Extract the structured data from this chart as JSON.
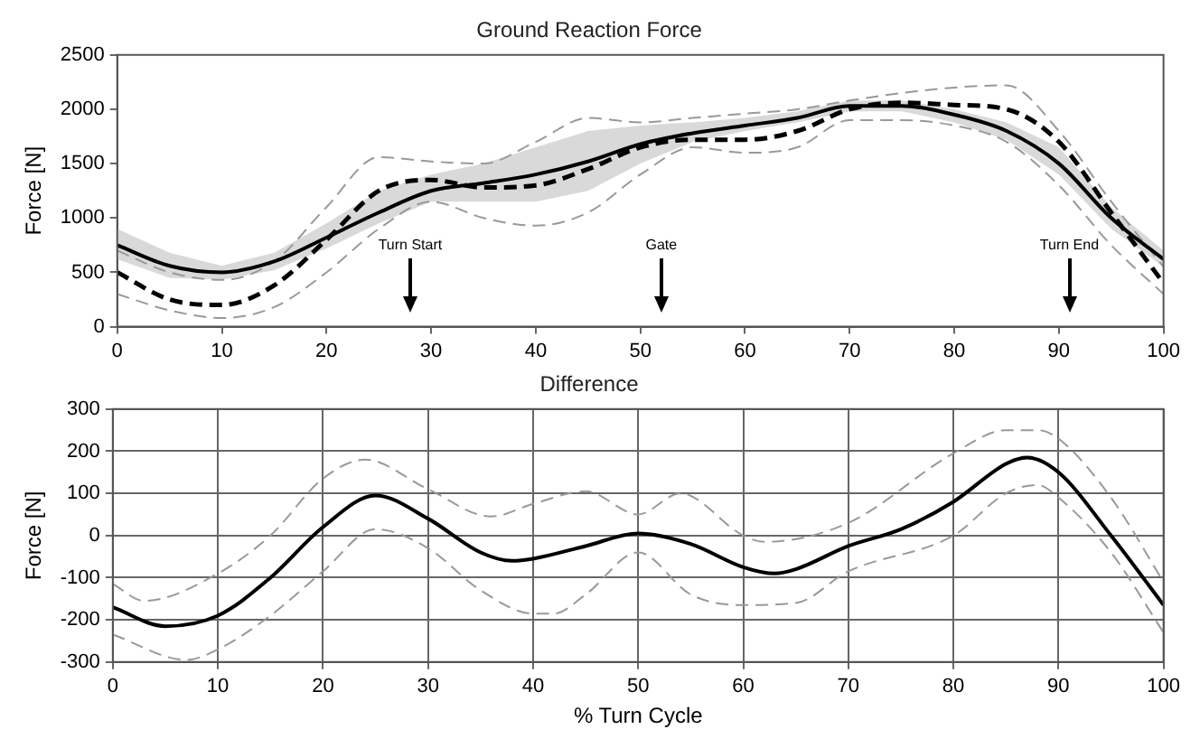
{
  "chart_data": [
    {
      "type": "line",
      "title": "Ground Reaction Force",
      "ylabel": "Force [N]",
      "xlim": [
        0,
        100
      ],
      "xticks": [
        0,
        10,
        20,
        30,
        40,
        50,
        60,
        70,
        80,
        90,
        100
      ],
      "ylim": [
        0,
        2500
      ],
      "yticks": [
        0,
        500,
        1000,
        1500,
        2000,
        2500
      ],
      "grid": false,
      "legend": false,
      "marker": "none",
      "x": [
        0,
        5,
        10,
        15,
        20,
        25,
        30,
        35,
        40,
        45,
        50,
        55,
        60,
        65,
        70,
        75,
        80,
        85,
        90,
        95,
        100
      ],
      "series": [
        {
          "color": "#000000",
          "line_style": "solid",
          "values": [
            750,
            560,
            500,
            600,
            820,
            1050,
            1250,
            1320,
            1400,
            1520,
            1680,
            1780,
            1850,
            1920,
            2030,
            2030,
            1950,
            1800,
            1500,
            1000,
            620
          ],
          "lower": [
            620,
            450,
            430,
            520,
            720,
            950,
            1150,
            1150,
            1150,
            1250,
            1500,
            1700,
            1800,
            1880,
            1980,
            1980,
            1880,
            1720,
            1400,
            900,
            550
          ],
          "upper": [
            900,
            680,
            560,
            680,
            950,
            1250,
            1400,
            1500,
            1650,
            1800,
            1850,
            1880,
            1920,
            1980,
            2080,
            2080,
            2000,
            1880,
            1650,
            1100,
            700
          ]
        },
        {
          "color": "#000000",
          "line_style": "dashed",
          "values": [
            500,
            250,
            200,
            380,
            800,
            1250,
            1350,
            1280,
            1300,
            1450,
            1650,
            1720,
            1720,
            1800,
            2000,
            2060,
            2040,
            2000,
            1700,
            1050,
            400
          ]
        },
        {
          "color": "#999999",
          "line_style": "dashed",
          "values": [
            700,
            500,
            430,
            600,
            1100,
            1560,
            1520,
            1500,
            1700,
            1920,
            1880,
            1920,
            1960,
            2000,
            2080,
            2150,
            2200,
            2220,
            1800,
            1150,
            550
          ]
        },
        {
          "color": "#999999",
          "line_style": "dashed",
          "values": [
            300,
            150,
            80,
            180,
            500,
            900,
            1150,
            1000,
            930,
            1050,
            1400,
            1650,
            1600,
            1650,
            1900,
            1900,
            1850,
            1700,
            1300,
            750,
            300
          ]
        }
      ],
      "ref_lines": [
        {
          "axis": "x",
          "value": 28,
          "label": "Turn Start",
          "color": "#000000"
        },
        {
          "axis": "x",
          "value": 52,
          "label": "Gate",
          "color": "#000000"
        },
        {
          "axis": "x",
          "value": 91,
          "label": "Turn End",
          "color": "#000000"
        }
      ]
    },
    {
      "type": "line",
      "title": "Difference",
      "xlabel": "% Turn Cycle",
      "ylabel": "Force [N]",
      "xlim": [
        0,
        100
      ],
      "xticks": [
        0,
        10,
        20,
        30,
        40,
        50,
        60,
        70,
        80,
        90,
        100
      ],
      "ylim": [
        -300,
        300
      ],
      "yticks": [
        -300,
        -200,
        -100,
        0,
        100,
        200,
        300
      ],
      "grid": true,
      "legend": false,
      "marker": "none",
      "series": [
        {
          "color": "#000000",
          "line_style": "solid",
          "x": [
            0,
            5,
            10,
            15,
            20,
            25,
            30,
            35,
            38,
            40,
            45,
            50,
            55,
            60,
            63,
            65,
            70,
            75,
            80,
            85,
            87,
            90,
            95,
            100
          ],
          "values": [
            -170,
            -215,
            -190,
            -100,
            20,
            95,
            40,
            -40,
            -60,
            -55,
            -25,
            5,
            -20,
            -75,
            -90,
            -80,
            -25,
            15,
            80,
            170,
            185,
            150,
            0,
            -165
          ]
        },
        {
          "color": "#999999",
          "line_style": "dashed",
          "x": [
            0,
            3,
            10,
            15,
            20,
            24,
            30,
            36,
            40,
            45,
            50,
            54,
            60,
            62,
            70,
            80,
            85,
            88,
            90,
            95,
            100
          ],
          "values": [
            -115,
            -155,
            -90,
            0,
            135,
            180,
            110,
            45,
            75,
            105,
            50,
            100,
            0,
            -15,
            30,
            195,
            250,
            250,
            230,
            90,
            -110
          ]
        },
        {
          "color": "#999999",
          "line_style": "dashed",
          "x": [
            0,
            7,
            10,
            15,
            20,
            25,
            30,
            35,
            40,
            42,
            45,
            50,
            55,
            60,
            65,
            70,
            80,
            85,
            88,
            90,
            95,
            100
          ],
          "values": [
            -235,
            -295,
            -270,
            -190,
            -85,
            15,
            -30,
            -130,
            -185,
            -185,
            -140,
            -40,
            -140,
            -165,
            -160,
            -85,
            0,
            100,
            120,
            90,
            -40,
            -230
          ]
        }
      ]
    }
  ]
}
